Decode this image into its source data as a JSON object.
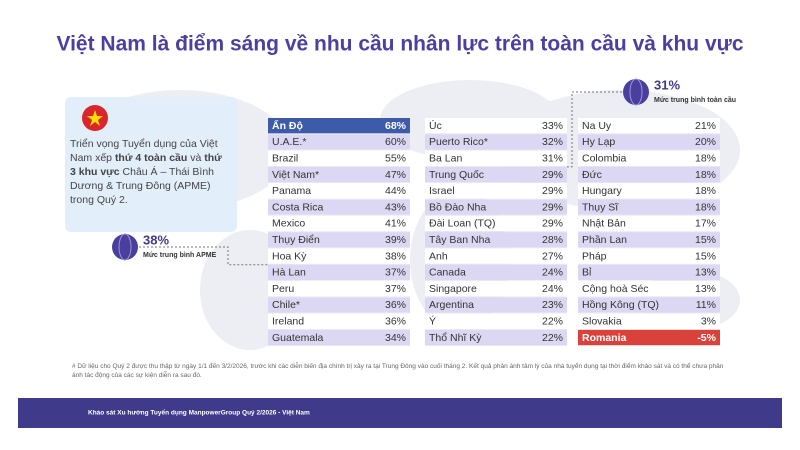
{
  "chart_data": {
    "type": "ranking-table",
    "title": "Việt Nam là điểm sáng về nhu cầu nhân lực trên toàn cầu và khu vực",
    "categories": [
      "Ấn Độ",
      "U.A.E.*",
      "Brazil",
      "Việt Nam*",
      "Panama",
      "Costa Rica",
      "Mexico",
      "Thụy Điển",
      "Hoa Kỳ",
      "Hà Lan",
      "Peru",
      "Chile*",
      "Ireland",
      "Guatemala",
      "Úc",
      "Puerto Rico*",
      "Ba Lan",
      "Trung Quốc",
      "Israel",
      "Bồ Đào Nha",
      "Đài Loan (TQ)",
      "Tây Ban Nha",
      "Anh",
      "Canada",
      "Singapore",
      "Argentina",
      "Ý",
      "Thổ Nhĩ Kỳ",
      "Na Uy",
      "Hy Lạp",
      "Colombia",
      "Đức",
      "Hungary",
      "Thụy Sĩ",
      "Nhật Bản",
      "Phần Lan",
      "Pháp",
      "Bỉ",
      "Cộng hoà Séc",
      "Hồng Kông (TQ)",
      "Slovakia",
      "Romania"
    ],
    "values": [
      68,
      60,
      55,
      47,
      44,
      43,
      41,
      39,
      38,
      37,
      37,
      36,
      36,
      34,
      33,
      32,
      31,
      29,
      29,
      29,
      29,
      28,
      27,
      24,
      24,
      23,
      22,
      22,
      21,
      20,
      18,
      18,
      18,
      18,
      17,
      15,
      15,
      13,
      13,
      11,
      3,
      -5
    ],
    "value_labels": [
      "68%",
      "60%",
      "55%",
      "47%",
      "44%",
      "43%",
      "41%",
      "39%",
      "38%",
      "37%",
      "37%",
      "36%",
      "36%",
      "34%",
      "33%",
      "32%",
      "31%",
      "29%",
      "29%",
      "29%",
      "29%",
      "28%",
      "27%",
      "24%",
      "24%",
      "23%",
      "22%",
      "22%",
      "21%",
      "20%",
      "18%",
      "18%",
      "18%",
      "18%",
      "17%",
      "15%",
      "15%",
      "13%",
      "13%",
      "11%",
      "3%",
      "-5%"
    ],
    "colors": [
      "#3e5ba9",
      "#dcd8f3",
      "#ffffff",
      "#dcd8f3",
      "#ffffff",
      "#dcd8f3",
      "#ffffff",
      "#dcd8f3",
      "#ffffff",
      "#dcd8f3",
      "#ffffff",
      "#dcd8f3",
      "#ffffff",
      "#dcd8f3",
      "#ffffff",
      "#dcd8f3",
      "#ffffff",
      "#dcd8f3",
      "#ffffff",
      "#dcd8f3",
      "#ffffff",
      "#dcd8f3",
      "#ffffff",
      "#dcd8f3",
      "#ffffff",
      "#dcd8f3",
      "#ffffff",
      "#dcd8f3",
      "#ffffff",
      "#dcd8f3",
      "#ffffff",
      "#dcd8f3",
      "#ffffff",
      "#dcd8f3",
      "#ffffff",
      "#dcd8f3",
      "#ffffff",
      "#dcd8f3",
      "#ffffff",
      "#dcd8f3",
      "#ffffff",
      "#d9413b"
    ],
    "summary": [
      "Triển vọng Tuyển dụng của Việt Nam xếp ",
      "thứ 4 toàn cầu",
      " và ",
      "thứ 3 khu vực",
      " Châu Á – Thái Bình Dương & Trung Đông (APME) trong Quý 2."
    ],
    "averages": [
      {
        "value": 38,
        "label": "38%",
        "name": "Mức trung bình APME"
      },
      {
        "value": 31,
        "label": "31%",
        "name": "Mức trung bình toàn cầu"
      }
    ],
    "footnote": "# Dữ liệu cho Quý 2 được thu thập từ ngày 1/1 đến 3/2/2026, trước khi các diễn biến địa chính trị xảy ra tại Trung Đông vào cuối tháng 2. Kết quả phản ánh tâm lý của nhà tuyển dụng tại thời điểm khảo sát và có thể chưa phản ánh tác động của các sự kiện diễn ra sau đó.",
    "footer": "Khảo sát Xu hướng Tuyển dụng ManpowerGroup Quý 2/2026 - Việt Nam"
  }
}
